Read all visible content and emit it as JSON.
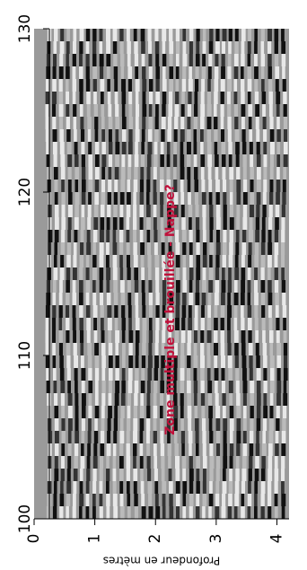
{
  "chart_data": {
    "type": "radargram",
    "xlim": [
      100,
      130
    ],
    "xticks": [
      100,
      110,
      120,
      130
    ],
    "ylim": [
      0,
      4.2
    ],
    "yticks": [
      0,
      1,
      2,
      3,
      4
    ],
    "ylabel": "Profondeur en mètres",
    "annotation": "Zone multiple et brouillée - Nappe?",
    "annotation_color": "#c0103a"
  }
}
